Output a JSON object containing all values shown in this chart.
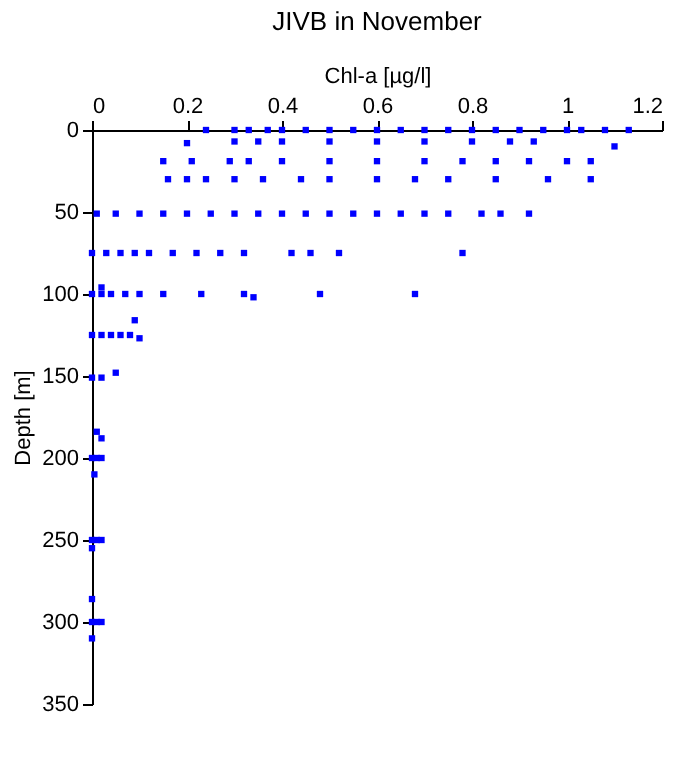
{
  "chart_data": {
    "type": "scatter",
    "title": "JIVB in November",
    "xlabel": "Chl-a [µg/l]",
    "ylabel": "Depth [m]",
    "xlim": [
      0,
      1.2
    ],
    "xticks": [
      0,
      0.2,
      0.4,
      0.6,
      0.8,
      1,
      1.2
    ],
    "ylim": [
      350,
      0
    ],
    "yticks": [
      0,
      50,
      100,
      150,
      200,
      250,
      300,
      350
    ],
    "grid": false,
    "marker": "square",
    "series": [
      {
        "color": "#0000ff",
        "x": [
          0.24,
          0.3,
          0.33,
          0.37,
          0.4,
          0.45,
          0.5,
          0.55,
          0.6,
          0.65,
          0.7,
          0.75,
          0.8,
          0.85,
          0.9,
          0.95,
          1.0,
          1.03,
          1.08,
          1.13,
          0.2,
          0.3,
          0.35,
          0.4,
          0.5,
          0.6,
          0.7,
          0.8,
          0.88,
          0.93,
          1.1,
          0.15,
          0.21,
          0.29,
          0.33,
          0.4,
          0.5,
          0.6,
          0.7,
          0.78,
          0.85,
          0.92,
          1.0,
          1.05,
          0.16,
          0.2,
          0.24,
          0.3,
          0.36,
          0.44,
          0.5,
          0.6,
          0.68,
          0.75,
          0.85,
          0.96,
          1.05,
          0.01,
          0.05,
          0.1,
          0.15,
          0.2,
          0.25,
          0.3,
          0.35,
          0.4,
          0.45,
          0.5,
          0.55,
          0.6,
          0.65,
          0.7,
          0.75,
          0.82,
          0.86,
          0.92,
          0.0,
          0.03,
          0.06,
          0.09,
          0.12,
          0.17,
          0.22,
          0.27,
          0.32,
          0.42,
          0.46,
          0.52,
          0.78,
          0.0,
          0.02,
          0.04,
          0.07,
          0.1,
          0.15,
          0.23,
          0.32,
          0.34,
          0.48,
          0.68,
          0.02,
          0.09,
          0.0,
          0.02,
          0.04,
          0.06,
          0.08,
          0.1,
          0.0,
          0.02,
          0.05,
          0.01,
          0.02,
          0.0,
          0.01,
          0.02,
          0.005,
          0.0,
          0.01,
          0.02,
          0.0,
          0.0,
          0.01,
          0.02,
          0.0,
          0.0
        ],
        "values": [
          0,
          0,
          0,
          0,
          0,
          0,
          0,
          0,
          0,
          0,
          0,
          0,
          0,
          0,
          0,
          0,
          0,
          0,
          0,
          0,
          8,
          7,
          7,
          7,
          7,
          7,
          7,
          7,
          7,
          7,
          10,
          19,
          19,
          19,
          19,
          19,
          19,
          19,
          19,
          19,
          19,
          19,
          19,
          19,
          30,
          30,
          30,
          30,
          30,
          30,
          30,
          30,
          30,
          30,
          30,
          30,
          30,
          51,
          51,
          51,
          51,
          51,
          51,
          51,
          51,
          51,
          51,
          51,
          51,
          51,
          51,
          51,
          51,
          51,
          51,
          51,
          75,
          75,
          75,
          75,
          75,
          75,
          75,
          75,
          75,
          75,
          75,
          75,
          75,
          100,
          100,
          100,
          100,
          100,
          100,
          100,
          100,
          102,
          100,
          100,
          96,
          116,
          125,
          125,
          125,
          125,
          125,
          127,
          151,
          151,
          148,
          184,
          188,
          200,
          200,
          200,
          210,
          250,
          250,
          250,
          255,
          300,
          300,
          300,
          286,
          310
        ]
      }
    ]
  }
}
